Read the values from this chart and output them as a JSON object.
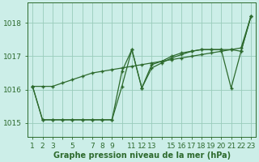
{
  "title": "Graphe pression niveau de la mer (hPa)",
  "bg_color": "#cceee8",
  "grid_color": "#99ccbb",
  "line_color": "#2d6a2d",
  "x_labels": [
    "1",
    "2",
    "3",
    "",
    "5",
    "",
    "7",
    "8",
    "9",
    "",
    "11",
    "12",
    "13",
    "",
    "15",
    "16",
    "17",
    "18",
    "19",
    "20",
    "21",
    "22",
    "23"
  ],
  "x_values": [
    1,
    2,
    3,
    4,
    5,
    6,
    7,
    8,
    9,
    10,
    11,
    12,
    13,
    14,
    15,
    16,
    17,
    18,
    19,
    20,
    21,
    22,
    23
  ],
  "series": [
    [
      1016.1,
      1016.1,
      1016.1,
      1016.2,
      1016.3,
      1016.4,
      1016.5,
      1016.55,
      1016.6,
      1016.65,
      1016.7,
      1016.75,
      1016.8,
      1016.85,
      1016.9,
      1016.95,
      1017.0,
      1017.05,
      1017.1,
      1017.15,
      1017.2,
      1017.25,
      1018.2
    ],
    [
      1016.1,
      1015.1,
      1015.1,
      1015.1,
      1015.1,
      1015.1,
      1015.1,
      1015.1,
      1015.1,
      1016.1,
      1017.2,
      1016.05,
      1016.65,
      1016.8,
      1016.95,
      1017.05,
      1017.15,
      1017.2,
      1017.2,
      1017.2,
      1016.05,
      1017.15,
      1018.2
    ],
    [
      1016.1,
      1015.1,
      1015.1,
      1015.1,
      1015.1,
      1015.1,
      1015.1,
      1015.1,
      1015.1,
      1016.55,
      1017.2,
      1016.05,
      1016.75,
      1016.85,
      1017.0,
      1017.1,
      1017.15,
      1017.2,
      1017.2,
      1017.2,
      1017.2,
      1017.15,
      1018.2
    ]
  ],
  "ylim": [
    1014.6,
    1018.6
  ],
  "yticks": [
    1015,
    1016,
    1017,
    1018
  ],
  "tick_fontsize": 6.5,
  "title_fontsize": 7,
  "marker": "+"
}
